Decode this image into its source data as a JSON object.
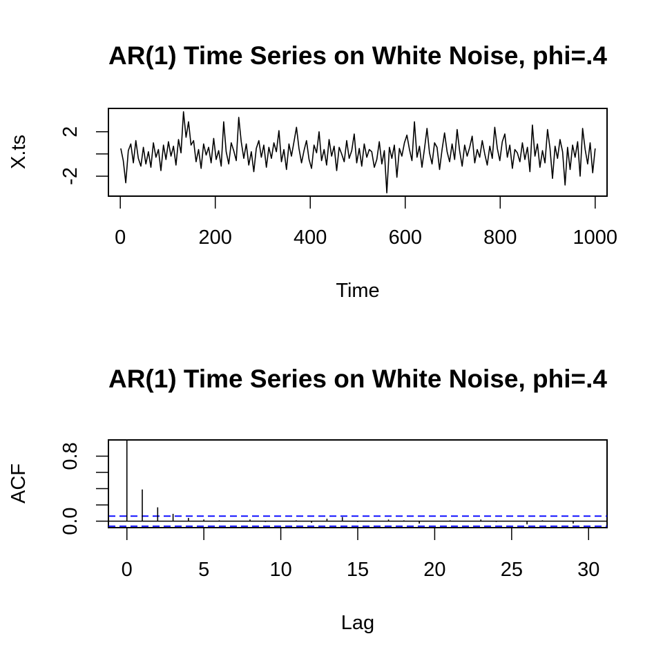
{
  "chart_data": [
    {
      "type": "line",
      "title": "AR(1) Time Series on White Noise, phi=.4",
      "xlabel": "Time",
      "ylabel": "X.ts",
      "xlim": [
        -25,
        1025
      ],
      "ylim": [
        -3.8,
        4.1
      ],
      "x_ticks": [
        0,
        200,
        400,
        600,
        800,
        1000
      ],
      "y_ticks": [
        -2,
        0,
        2
      ],
      "y_tick_labels": [
        "-2",
        "",
        "2"
      ],
      "grid": false,
      "series": [
        {
          "x_start": 1,
          "x_end": 1000,
          "sampled_every": 5,
          "values": [
            0.5,
            -0.6,
            -2.6,
            0.3,
            0.9,
            -0.8,
            1.2,
            -0.4,
            -1.1,
            0.6,
            -0.9,
            0.2,
            -1.2,
            1.0,
            -0.3,
            0.4,
            -1.5,
            0.8,
            -0.5,
            1.1,
            -0.2,
            0.7,
            -1.0,
            1.3,
            0.1,
            3.8,
            1.5,
            2.9,
            0.8,
            1.2,
            -0.7,
            0.4,
            -1.3,
            0.9,
            -0.1,
            0.6,
            -0.8,
            1.4,
            -0.5,
            0.3,
            -1.1,
            2.9,
            0.2,
            -0.9,
            1.0,
            0.3,
            -0.6,
            3.3,
            1.1,
            -0.4,
            0.9,
            -1.0,
            0.2,
            -1.6,
            0.5,
            1.2,
            -0.3,
            0.8,
            -1.2,
            0.6,
            -0.4,
            1.0,
            0.2,
            2.1,
            -0.7,
            0.4,
            -1.4,
            0.9,
            -0.2,
            1.1,
            2.4,
            0.5,
            -0.8,
            0.3,
            1.2,
            -0.5,
            -1.3,
            0.8,
            0.1,
            2.0,
            -0.6,
            0.4,
            -1.0,
            1.3,
            -0.2,
            0.7,
            -1.5,
            0.6,
            0.0,
            -0.7,
            1.2,
            -0.4,
            0.3,
            1.8,
            -0.8,
            0.5,
            -1.1,
            0.9,
            -0.3,
            0.4,
            0.2,
            -1.2,
            -0.5,
            1.1,
            -0.9,
            0.3,
            -3.5,
            0.6,
            -0.4,
            0.8,
            -2.1,
            0.5,
            -0.2,
            1.0,
            1.7,
            0.4,
            -0.6,
            2.9,
            -0.3,
            0.7,
            -1.2,
            0.5,
            2.3,
            0.1,
            -0.9,
            1.0,
            0.6,
            -1.4,
            0.4,
            1.9,
            0.2,
            -0.7,
            0.9,
            -0.5,
            2.2,
            0.3,
            -1.1,
            0.8,
            -0.2,
            0.6,
            1.6,
            -0.8,
            0.4,
            -0.3,
            1.2,
            0.0,
            -1.0,
            0.7,
            -0.4,
            2.4,
            0.5,
            -0.6,
            1.1,
            1.8,
            -0.3,
            0.8,
            -1.3,
            0.4,
            0.1,
            -0.7,
            1.0,
            -0.5,
            0.6,
            -1.6,
            2.6,
            -0.2,
            0.9,
            -1.2,
            0.3,
            -0.8,
            2.2,
            0.5,
            -2.2,
            0.7,
            -0.4,
            1.3,
            0.2,
            -2.8,
            0.6,
            -1.4,
            0.8,
            -0.3,
            1.1,
            -2.0,
            2.3,
            0.4,
            -0.9,
            1.0,
            -1.7,
            0.5
          ]
        }
      ]
    },
    {
      "type": "bar",
      "title": "AR(1) Time Series on White Noise, phi=.4",
      "xlabel": "Lag",
      "ylabel": "ACF",
      "xlim": [
        -1.2,
        31.2
      ],
      "ylim": [
        -0.08,
        1.0
      ],
      "x_ticks": [
        0,
        5,
        10,
        15,
        20,
        25,
        30
      ],
      "y_ticks": [
        0.0,
        0.2,
        0.4,
        0.6,
        0.8
      ],
      "y_tick_labels": [
        "0.0",
        "",
        "",
        "",
        "0.8"
      ],
      "grid": false,
      "categories": [
        0,
        1,
        2,
        3,
        4,
        5,
        6,
        7,
        8,
        9,
        10,
        11,
        12,
        13,
        14,
        15,
        16,
        17,
        18,
        19,
        20,
        21,
        22,
        23,
        24,
        25,
        26,
        27,
        28,
        29,
        30
      ],
      "values": [
        1.0,
        0.39,
        0.17,
        0.09,
        0.04,
        0.02,
        0.01,
        0.0,
        0.02,
        -0.01,
        0.0,
        0.01,
        -0.02,
        0.03,
        0.05,
        -0.01,
        0.0,
        0.02,
        0.01,
        -0.03,
        0.0,
        0.01,
        0.0,
        0.02,
        -0.01,
        0.0,
        -0.04,
        0.01,
        0.0,
        -0.03,
        0.0
      ],
      "confidence_band": [
        -0.062,
        0.062
      ],
      "confidence_color": "#0000ff"
    }
  ]
}
